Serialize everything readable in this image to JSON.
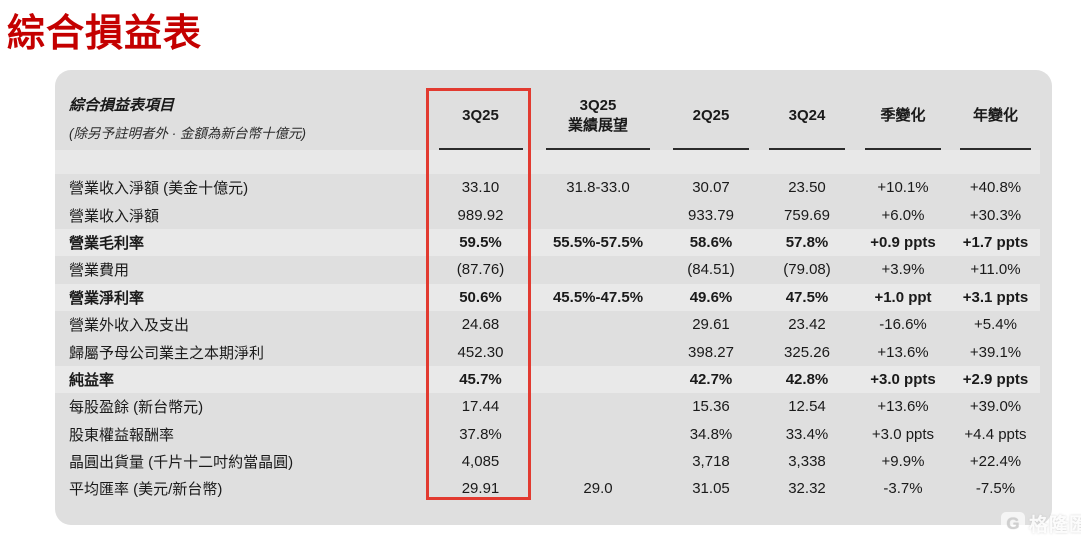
{
  "page_title": "綜合損益表",
  "colors": {
    "title_red": "#c40000",
    "highlight_box_red": "#e23a30",
    "panel_gray": "#dfdfdf",
    "text": "#1a1a1a"
  },
  "table_header": {
    "item_title": "綜合損益表項目",
    "item_subtitle": "(除另予註明者外 · 金額為新台幣十億元)",
    "col_3q25": "3Q25",
    "col_outlook_line1": "3Q25",
    "col_outlook_line2": "業績展望",
    "col_2q25": "2Q25",
    "col_3q24": "3Q24",
    "col_qoq": "季變化",
    "col_yoy": "年變化"
  },
  "chart_data": {
    "type": "table",
    "title": "綜合損益表",
    "unit_note": "除另予註明者外，金額為新台幣十億元",
    "columns": [
      "綜合損益表項目",
      "3Q25",
      "3Q25 業績展望",
      "2Q25",
      "3Q24",
      "季變化",
      "年變化"
    ],
    "highlighted_column": "3Q25",
    "rows": [
      {
        "label": "營業收入淨額 (美金十億元)",
        "bold": false,
        "values": [
          "33.10",
          "31.8-33.0",
          "30.07",
          "23.50",
          "+10.1%",
          "+40.8%"
        ]
      },
      {
        "label": "營業收入淨額",
        "bold": false,
        "values": [
          "989.92",
          "",
          "933.79",
          "759.69",
          "+6.0%",
          "+30.3%"
        ]
      },
      {
        "label": "營業毛利率",
        "bold": true,
        "values": [
          "59.5%",
          "55.5%-57.5%",
          "58.6%",
          "57.8%",
          "+0.9 ppts",
          "+1.7 ppts"
        ]
      },
      {
        "label": "營業費用",
        "bold": false,
        "values": [
          "(87.76)",
          "",
          "(84.51)",
          "(79.08)",
          "+3.9%",
          "+11.0%"
        ]
      },
      {
        "label": "營業淨利率",
        "bold": true,
        "values": [
          "50.6%",
          "45.5%-47.5%",
          "49.6%",
          "47.5%",
          "+1.0 ppt",
          "+3.1 ppts"
        ]
      },
      {
        "label": "營業外收入及支出",
        "bold": false,
        "values": [
          "24.68",
          "",
          "29.61",
          "23.42",
          "-16.6%",
          "+5.4%"
        ]
      },
      {
        "label": "歸屬予母公司業主之本期淨利",
        "bold": false,
        "values": [
          "452.30",
          "",
          "398.27",
          "325.26",
          "+13.6%",
          "+39.1%"
        ]
      },
      {
        "label": "純益率",
        "bold": true,
        "values": [
          "45.7%",
          "",
          "42.7%",
          "42.8%",
          "+3.0 ppts",
          "+2.9 ppts"
        ]
      },
      {
        "label": "每股盈餘 (新台幣元)",
        "bold": false,
        "values": [
          "17.44",
          "",
          "15.36",
          "12.54",
          "+13.6%",
          "+39.0%"
        ]
      },
      {
        "label": "股東權益報酬率",
        "bold": false,
        "values": [
          "37.8%",
          "",
          "34.8%",
          "33.4%",
          "+3.0 ppts",
          "+4.4 ppts"
        ]
      },
      {
        "label": "晶圓出貨量 (千片十二吋約當晶圓)",
        "bold": false,
        "values": [
          "4,085",
          "",
          "3,718",
          "3,338",
          "+9.9%",
          "+22.4%"
        ]
      },
      {
        "label": "平均匯率 (美元/新台幣)",
        "bold": false,
        "values": [
          "29.91",
          "29.0",
          "31.05",
          "32.32",
          "-3.7%",
          "-7.5%"
        ]
      }
    ]
  },
  "watermark": {
    "icon_letter": "G",
    "brand": "格隆匯"
  }
}
